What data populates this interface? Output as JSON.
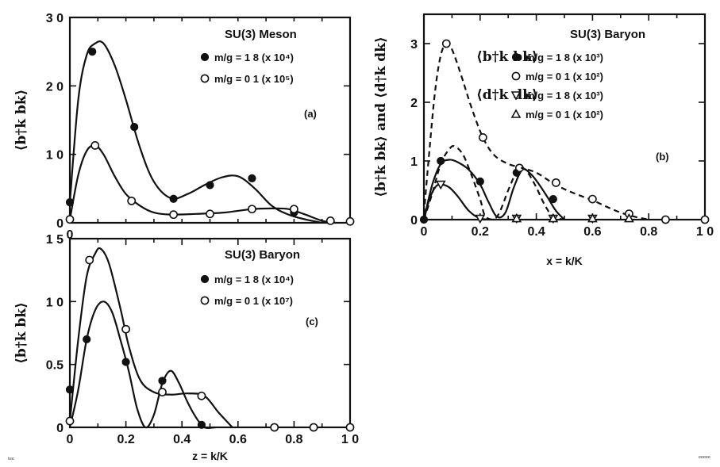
{
  "corner_left": "ᵗᵉᵉ",
  "corner_right": "ᵉᵉᵉᵉᵉ",
  "chart_data": [
    {
      "id": "a",
      "type": "line",
      "title": "SU(3) Meson",
      "panel_label": "(a)",
      "ylabel": "⟨b†k bk⟩",
      "xlabel": "",
      "xlim": [
        0,
        1.0
      ],
      "ylim": [
        0,
        3.0
      ],
      "x_ticks": [
        "0",
        "",
        "",
        "",
        "",
        "",
        "",
        "",
        "",
        "",
        ""
      ],
      "y_ticks": [
        {
          "v": 0,
          "label": "0"
        },
        {
          "v": 1.0,
          "label": "1 0"
        },
        {
          "v": 2.0,
          "label": "2 0"
        },
        {
          "v": 3.0,
          "label": "3 0"
        }
      ],
      "legend": [
        {
          "label": "m/g = 1 8 (x 10⁴)",
          "marker": "filled-circle"
        },
        {
          "label": "m/g = 0 1 (x 10⁵)",
          "marker": "open-circle"
        }
      ],
      "series": [
        {
          "marker": "filled-circle",
          "dash": "solid",
          "curve": [
            [
              0,
              0.3
            ],
            [
              0.03,
              1.8
            ],
            [
              0.06,
              2.45
            ],
            [
              0.09,
              2.62
            ],
            [
              0.12,
              2.62
            ],
            [
              0.16,
              2.3
            ],
            [
              0.2,
              1.8
            ],
            [
              0.25,
              1.1
            ],
            [
              0.3,
              0.6
            ],
            [
              0.36,
              0.36
            ],
            [
              0.42,
              0.42
            ],
            [
              0.48,
              0.55
            ],
            [
              0.54,
              0.66
            ],
            [
              0.6,
              0.68
            ],
            [
              0.66,
              0.5
            ],
            [
              0.72,
              0.25
            ],
            [
              0.78,
              0.12
            ],
            [
              0.84,
              0.05
            ],
            [
              0.9,
              0
            ]
          ],
          "points": [
            [
              0,
              0.3
            ],
            [
              0.08,
              2.5
            ],
            [
              0.23,
              1.4
            ],
            [
              0.37,
              0.35
            ],
            [
              0.5,
              0.55
            ],
            [
              0.65,
              0.65
            ],
            [
              0.8,
              0.15
            ]
          ]
        },
        {
          "marker": "open-circle",
          "dash": "solid",
          "curve": [
            [
              0,
              0.05
            ],
            [
              0.03,
              0.7
            ],
            [
              0.06,
              1.05
            ],
            [
              0.09,
              1.13
            ],
            [
              0.12,
              1.0
            ],
            [
              0.16,
              0.68
            ],
            [
              0.2,
              0.42
            ],
            [
              0.25,
              0.25
            ],
            [
              0.3,
              0.15
            ],
            [
              0.36,
              0.12
            ],
            [
              0.45,
              0.13
            ],
            [
              0.55,
              0.15
            ],
            [
              0.65,
              0.2
            ],
            [
              0.72,
              0.21
            ],
            [
              0.78,
              0.2
            ],
            [
              0.84,
              0.12
            ],
            [
              0.9,
              0.03
            ],
            [
              0.95,
              0
            ]
          ],
          "points": [
            [
              0,
              0.05
            ],
            [
              0.09,
              1.13
            ],
            [
              0.22,
              0.32
            ],
            [
              0.37,
              0.12
            ],
            [
              0.5,
              0.13
            ],
            [
              0.65,
              0.2
            ],
            [
              0.8,
              0.2
            ],
            [
              0.93,
              0.03
            ],
            [
              1.0,
              0.02
            ]
          ]
        }
      ]
    },
    {
      "id": "c",
      "type": "line",
      "title": "SU(3) Baryon",
      "panel_label": "(c)",
      "ylabel": "⟨b†k bk⟩",
      "xlabel": "z = k/K",
      "xlim": [
        0,
        1.0
      ],
      "ylim": [
        0,
        1.5
      ],
      "x_ticks": [
        "0",
        "",
        "0.2",
        "",
        "0.4",
        "",
        "0.6",
        "",
        "0.8",
        "",
        "1 0"
      ],
      "y_ticks": [
        {
          "v": 0,
          "label": "0"
        },
        {
          "v": 0.5,
          "label": "0.5"
        },
        {
          "v": 1.0,
          "label": "1 0"
        },
        {
          "v": 1.5,
          "label": "1 5"
        }
      ],
      "legend": [
        {
          "label": "m/g = 1 8 (x 10⁴)",
          "marker": "filled-circle"
        },
        {
          "label": "m/g = 0 1 (x 10⁷)",
          "marker": "open-circle"
        }
      ],
      "series": [
        {
          "marker": "filled-circle",
          "dash": "solid",
          "curve": [
            [
              0,
              0
            ],
            [
              0.03,
              0.3
            ],
            [
              0.06,
              0.7
            ],
            [
              0.09,
              0.93
            ],
            [
              0.12,
              1.0
            ],
            [
              0.15,
              0.92
            ],
            [
              0.18,
              0.7
            ],
            [
              0.21,
              0.45
            ],
            [
              0.24,
              0.15
            ],
            [
              0.27,
              0
            ],
            [
              0.3,
              0.1
            ],
            [
              0.33,
              0.35
            ],
            [
              0.36,
              0.45
            ],
            [
              0.39,
              0.35
            ],
            [
              0.42,
              0.2
            ],
            [
              0.45,
              0.08
            ],
            [
              0.48,
              0
            ],
            [
              0.52,
              0
            ]
          ],
          "points": [
            [
              0,
              0.3
            ],
            [
              0.06,
              0.7
            ],
            [
              0.2,
              0.52
            ],
            [
              0.33,
              0.37
            ],
            [
              0.47,
              0.02
            ]
          ]
        },
        {
          "marker": "open-circle",
          "dash": "solid",
          "curve": [
            [
              0,
              0.05
            ],
            [
              0.03,
              0.7
            ],
            [
              0.06,
              1.2
            ],
            [
              0.09,
              1.38
            ],
            [
              0.11,
              1.42
            ],
            [
              0.14,
              1.3
            ],
            [
              0.18,
              0.95
            ],
            [
              0.21,
              0.65
            ],
            [
              0.25,
              0.38
            ],
            [
              0.3,
              0.28
            ],
            [
              0.36,
              0.26
            ],
            [
              0.42,
              0.27
            ],
            [
              0.48,
              0.25
            ],
            [
              0.53,
              0.12
            ],
            [
              0.58,
              0
            ]
          ],
          "points": [
            [
              0,
              0.05
            ],
            [
              0.07,
              1.33
            ],
            [
              0.2,
              0.78
            ],
            [
              0.33,
              0.28
            ],
            [
              0.47,
              0.25
            ],
            [
              0.73,
              0
            ],
            [
              0.87,
              0
            ],
            [
              1.0,
              0
            ]
          ]
        }
      ]
    },
    {
      "id": "b",
      "type": "line",
      "title": "SU(3) Baryon",
      "panel_label": "(b)",
      "ylabel": "⟨b†k bk⟩ and ⟨d†k dk⟩",
      "xlabel": "x = k/K",
      "xlim": [
        0,
        1.0
      ],
      "ylim": [
        0,
        3.5
      ],
      "x_ticks": [
        "0",
        "",
        "0.2",
        "",
        "0.4",
        "",
        "0.6",
        "",
        "0.8",
        "",
        "1 0"
      ],
      "y_ticks": [
        {
          "v": 0,
          "label": "0"
        },
        {
          "v": 1,
          "label": "1"
        },
        {
          "v": 2,
          "label": "2"
        },
        {
          "v": 3,
          "label": "3"
        }
      ],
      "legend": [
        {
          "label": "m/g = 1 8 (x 10³)",
          "marker": "filled-circle",
          "group": "⟨b†k bk⟩"
        },
        {
          "label": "m/g = 0 1 (x 10²)",
          "marker": "open-circle"
        },
        {
          "label": "m/g = 1 8 (x 10³)",
          "marker": "down-triangle",
          "group": "⟨d†k dk⟩"
        },
        {
          "label": "m/g = 0 1 (x 10²)",
          "marker": "up-triangle"
        }
      ],
      "series": [
        {
          "marker": "filled-circle",
          "dash": "solid",
          "curve": [
            [
              0,
              0
            ],
            [
              0.03,
              0.6
            ],
            [
              0.06,
              0.95
            ],
            [
              0.09,
              1.02
            ],
            [
              0.12,
              0.98
            ],
            [
              0.16,
              0.85
            ],
            [
              0.2,
              0.6
            ],
            [
              0.23,
              0.3
            ],
            [
              0.26,
              0.05
            ],
            [
              0.29,
              0.12
            ],
            [
              0.32,
              0.55
            ],
            [
              0.35,
              0.85
            ],
            [
              0.38,
              0.78
            ],
            [
              0.41,
              0.6
            ],
            [
              0.44,
              0.38
            ],
            [
              0.47,
              0.15
            ],
            [
              0.5,
              0
            ]
          ],
          "points": [
            [
              0,
              0
            ],
            [
              0.06,
              1.0
            ],
            [
              0.2,
              0.65
            ],
            [
              0.33,
              0.8
            ],
            [
              0.46,
              0.35
            ]
          ]
        },
        {
          "marker": "open-circle",
          "dash": "dashed",
          "curve": [
            [
              0,
              0.1
            ],
            [
              0.02,
              1.2
            ],
            [
              0.04,
              2.2
            ],
            [
              0.06,
              2.8
            ],
            [
              0.08,
              3.0
            ],
            [
              0.1,
              2.9
            ],
            [
              0.13,
              2.5
            ],
            [
              0.17,
              1.9
            ],
            [
              0.21,
              1.4
            ],
            [
              0.25,
              1.1
            ],
            [
              0.3,
              0.95
            ],
            [
              0.35,
              0.88
            ],
            [
              0.4,
              0.8
            ],
            [
              0.45,
              0.65
            ],
            [
              0.5,
              0.52
            ],
            [
              0.55,
              0.42
            ],
            [
              0.6,
              0.33
            ],
            [
              0.65,
              0.22
            ],
            [
              0.7,
              0.12
            ],
            [
              0.75,
              0.05
            ],
            [
              0.8,
              0
            ]
          ],
          "points": [
            [
              0.08,
              3.0
            ],
            [
              0.21,
              1.4
            ],
            [
              0.34,
              0.88
            ],
            [
              0.47,
              0.63
            ],
            [
              0.6,
              0.35
            ],
            [
              0.73,
              0.1
            ],
            [
              0.86,
              0
            ],
            [
              1.0,
              0
            ]
          ]
        },
        {
          "marker": "down-triangle",
          "dash": "solid",
          "curve": [
            [
              0,
              0
            ],
            [
              0.02,
              0.35
            ],
            [
              0.04,
              0.55
            ],
            [
              0.06,
              0.6
            ],
            [
              0.09,
              0.55
            ],
            [
              0.12,
              0.4
            ],
            [
              0.16,
              0.15
            ],
            [
              0.2,
              0.02
            ],
            [
              0.25,
              0
            ]
          ],
          "points": [
            [
              0.06,
              0.6
            ],
            [
              0.2,
              0.02
            ],
            [
              0.33,
              0.02
            ],
            [
              0.46,
              0.02
            ],
            [
              0.6,
              0.02
            ]
          ]
        },
        {
          "marker": "up-triangle",
          "dash": "dashed",
          "curve": [
            [
              0,
              0
            ],
            [
              0.03,
              0.45
            ],
            [
              0.06,
              0.95
            ],
            [
              0.09,
              1.2
            ],
            [
              0.11,
              1.25
            ],
            [
              0.14,
              1.1
            ],
            [
              0.17,
              0.75
            ],
            [
              0.2,
              0.35
            ],
            [
              0.22,
              0.05
            ],
            [
              0.26,
              0.05
            ],
            [
              0.3,
              0.5
            ],
            [
              0.33,
              0.82
            ],
            [
              0.35,
              0.88
            ],
            [
              0.37,
              0.8
            ],
            [
              0.4,
              0.55
            ],
            [
              0.43,
              0.25
            ],
            [
              0.46,
              0.05
            ],
            [
              0.5,
              0
            ]
          ],
          "points": [
            [
              0.33,
              0.02
            ],
            [
              0.46,
              0.02
            ],
            [
              0.6,
              0.02
            ],
            [
              0.73,
              0.02
            ]
          ]
        }
      ]
    }
  ]
}
